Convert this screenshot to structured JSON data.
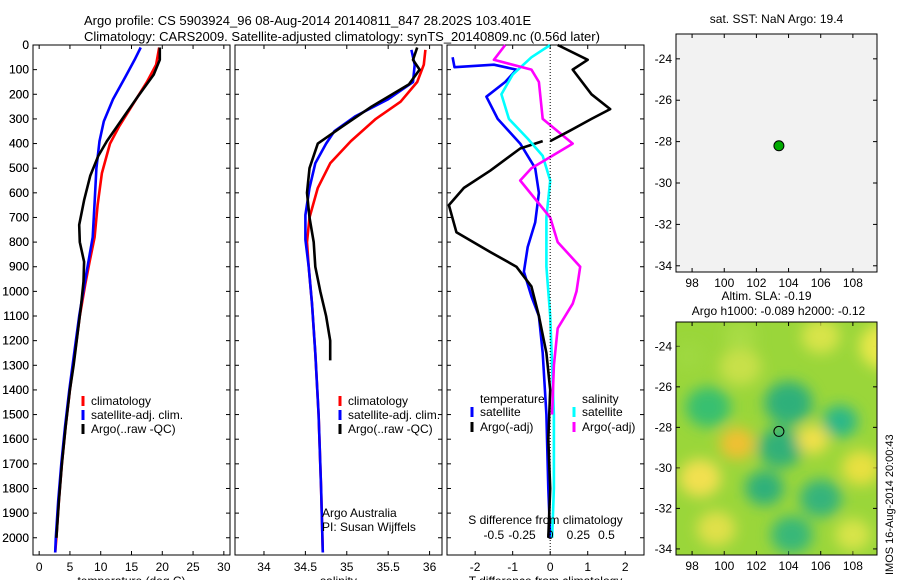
{
  "header": {
    "line1": "Argo profile: CS 5903924_96 08-Aug-2014 20140811_847 28.202S 103.401E",
    "line2": "Climatology: CARS2009. Satellite-adjusted climatology: synTS_20140809.nc (0.56d later)"
  },
  "watermark": "IMOS 16-Aug-2014 20:00:43",
  "colors": {
    "climatology": "#ff0000",
    "satellite": "#0000ff",
    "argo": "#000000",
    "sat_sal": "#00ffff",
    "argo_sal": "#ff00ff",
    "marker": "#00aa00"
  },
  "chart_data": [
    {
      "id": "temp",
      "type": "line",
      "xlabel": "temperature (deg C)",
      "ylabel": "",
      "xlim": [
        -1,
        31
      ],
      "ylim": [
        2070,
        0
      ],
      "xticks": [
        0,
        5,
        10,
        15,
        20,
        25,
        30
      ],
      "xtick_labels": [
        "0",
        "5",
        "10",
        "15",
        "20",
        "25",
        "30"
      ],
      "yticks": [
        0,
        100,
        200,
        300,
        400,
        500,
        600,
        700,
        800,
        900,
        1000,
        1100,
        1200,
        1300,
        1400,
        1500,
        1600,
        1700,
        1800,
        1900,
        2000
      ],
      "ytick_labels": [
        "0",
        "100",
        "200",
        "300",
        "400",
        "500",
        "600",
        "700",
        "800",
        "900",
        "1000",
        "1100",
        "1200",
        "1300",
        "1400",
        "1500",
        "1600",
        "1700",
        "1800",
        "1900",
        "2000"
      ],
      "legend": [
        "climatology",
        "satellite-adj. clim.",
        "Argo(..raw -QC)"
      ],
      "series": [
        {
          "name": "climatology",
          "color": "#ff0000",
          "points": [
            [
              19.5,
              10
            ],
            [
              19,
              80
            ],
            [
              17.5,
              150
            ],
            [
              15,
              250
            ],
            [
              13,
              330
            ],
            [
              11.5,
              400
            ],
            [
              10.2,
              520
            ],
            [
              9.5,
              650
            ],
            [
              9,
              780
            ],
            [
              8.2,
              880
            ],
            [
              7.5,
              970
            ],
            [
              6.6,
              1100
            ],
            [
              5.8,
              1250
            ],
            [
              5,
              1400
            ],
            [
              4.3,
              1550
            ],
            [
              3.7,
              1700
            ],
            [
              3.2,
              1850
            ],
            [
              2.8,
              2000
            ],
            [
              2.6,
              2060
            ]
          ]
        },
        {
          "name": "satellite-adj. clim.",
          "color": "#0000ff",
          "points": [
            [
              16.5,
              10
            ],
            [
              15.5,
              60
            ],
            [
              14,
              130
            ],
            [
              12,
              220
            ],
            [
              10.5,
              310
            ],
            [
              9.8,
              390
            ],
            [
              9.3,
              500
            ],
            [
              9,
              640
            ],
            [
              8.7,
              780
            ],
            [
              8,
              880
            ],
            [
              7.3,
              980
            ],
            [
              6.5,
              1100
            ],
            [
              5.7,
              1250
            ],
            [
              4.9,
              1400
            ],
            [
              4.2,
              1550
            ],
            [
              3.6,
              1700
            ],
            [
              3.1,
              1850
            ],
            [
              2.7,
              2000
            ],
            [
              2.6,
              2060
            ]
          ]
        },
        {
          "name": "Argo(..raw -QC)",
          "color": "#000000",
          "points": [
            [
              19.6,
              10
            ],
            [
              19.6,
              60
            ],
            [
              18.6,
              120
            ],
            [
              16,
              210
            ],
            [
              13.5,
              300
            ],
            [
              11,
              390
            ],
            [
              9.6,
              450
            ],
            [
              8.3,
              530
            ],
            [
              7.3,
              630
            ],
            [
              6.5,
              730
            ],
            [
              6.6,
              800
            ],
            [
              7.3,
              880
            ],
            [
              7.2,
              960
            ],
            [
              6.8,
              1060
            ],
            [
              6.2,
              1180
            ],
            [
              5.6,
              1300
            ],
            [
              5,
              1400
            ],
            [
              4.3,
              1550
            ],
            [
              3.7,
              1700
            ],
            [
              3.2,
              1850
            ],
            [
              2.8,
              2000
            ]
          ]
        }
      ],
      "annotations": []
    },
    {
      "id": "sal",
      "type": "line",
      "xlabel": "salinity",
      "ylabel": "",
      "xlim": [
        33.65,
        36.15
      ],
      "ylim": [
        2070,
        0
      ],
      "xticks": [
        34,
        34.5,
        35,
        35.5,
        36
      ],
      "xtick_labels": [
        "34",
        "34.5",
        "35",
        "35.5",
        "36"
      ],
      "yticks": [],
      "ytick_labels": [],
      "legend": [
        "climatology",
        "satellite-adj. clim.",
        "Argo(..raw -QC)"
      ],
      "annotations": [
        "Argo Australia",
        "PI: Susan Wijffels"
      ],
      "series": [
        {
          "name": "climatology",
          "color": "#ff0000",
          "points": [
            [
              35.95,
              20
            ],
            [
              35.93,
              80
            ],
            [
              35.85,
              150
            ],
            [
              35.65,
              230
            ],
            [
              35.35,
              300
            ],
            [
              35.05,
              390
            ],
            [
              34.8,
              480
            ],
            [
              34.65,
              580
            ],
            [
              34.55,
              700
            ],
            [
              34.52,
              800
            ],
            [
              34.54,
              900
            ],
            [
              34.58,
              1050
            ],
            [
              34.62,
              1250
            ],
            [
              34.66,
              1500
            ],
            [
              34.69,
              1800
            ],
            [
              34.71,
              2060
            ]
          ]
        },
        {
          "name": "satellite-adj. clim.",
          "color": "#0000ff",
          "points": [
            [
              35.78,
              20
            ],
            [
              35.82,
              80
            ],
            [
              35.8,
              150
            ],
            [
              35.5,
              220
            ],
            [
              35.1,
              290
            ],
            [
              34.85,
              350
            ],
            [
              34.75,
              400
            ],
            [
              34.62,
              480
            ],
            [
              34.55,
              580
            ],
            [
              34.5,
              690
            ],
            [
              34.5,
              790
            ],
            [
              34.54,
              900
            ],
            [
              34.58,
              1050
            ],
            [
              34.62,
              1250
            ],
            [
              34.66,
              1500
            ],
            [
              34.69,
              1800
            ],
            [
              34.71,
              2060
            ]
          ]
        },
        {
          "name": "Argo(..raw -QC)",
          "color": "#000000",
          "points": [
            [
              35.85,
              10
            ],
            [
              35.8,
              60
            ],
            [
              35.88,
              100
            ],
            [
              35.75,
              160
            ],
            [
              35.3,
              250
            ],
            [
              34.95,
              330
            ],
            [
              34.65,
              400
            ],
            [
              34.55,
              500
            ],
            [
              34.52,
              600
            ],
            [
              34.55,
              700
            ],
            [
              34.6,
              800
            ],
            [
              34.62,
              900
            ],
            [
              34.68,
              1000
            ],
            [
              34.75,
              1100
            ],
            [
              34.8,
              1200
            ],
            [
              34.8,
              1280
            ]
          ]
        }
      ]
    },
    {
      "id": "diff",
      "type": "line",
      "xlabel": "T difference from climatology",
      "xlabel_top": "S difference from climatology",
      "xlim": [
        -2.75,
        2.5
      ],
      "ylim": [
        2070,
        0
      ],
      "xticks": [
        -2,
        -1,
        0,
        1,
        2
      ],
      "xtick_labels": [
        "-2",
        "-1",
        "0",
        "1",
        "2"
      ],
      "top_ticks_at": [
        -1.5,
        -0.75,
        0,
        0.75,
        1.5
      ],
      "top_tick_labels": [
        "-0.5",
        "-0.25",
        "0",
        "0.25",
        "0.5"
      ],
      "yticks": [],
      "ytick_labels": [],
      "legend_titles": [
        "temperature",
        "salinity"
      ],
      "legend": [
        "satellite",
        "Argo(-adj)",
        "satellite",
        "Argo(-adj)"
      ],
      "series": [
        {
          "name": "temperature satellite",
          "color": "#0000ff",
          "points": [
            [
              -2.6,
              50
            ],
            [
              -2.55,
              90
            ],
            [
              -1.5,
              80
            ],
            [
              -0.9,
              100
            ],
            [
              -1.2,
              150
            ],
            [
              -1.7,
              210
            ],
            [
              -1.4,
              300
            ],
            [
              -0.8,
              400
            ],
            [
              -0.4,
              500
            ],
            [
              -0.3,
              600
            ],
            [
              -0.4,
              720
            ],
            [
              -0.6,
              820
            ],
            [
              -0.7,
              920
            ],
            [
              -0.5,
              1020
            ],
            [
              -0.3,
              1100
            ],
            [
              -0.2,
              1250
            ],
            [
              -0.1,
              1500
            ],
            [
              -0.05,
              1800
            ],
            [
              0,
              2000
            ]
          ]
        },
        {
          "name": "temperature Argo(-adj)",
          "color": "#000000",
          "points": [
            [
              -0.2,
              390
            ],
            [
              -0.8,
              420
            ],
            [
              -1.6,
              510
            ],
            [
              -2.3,
              580
            ],
            [
              -2.7,
              650
            ],
            [
              -2.5,
              760
            ],
            [
              -1.6,
              840
            ],
            [
              -0.9,
              900
            ],
            [
              -0.5,
              980
            ],
            [
              -0.3,
              1100
            ],
            [
              -0.1,
              1250
            ],
            [
              0,
              1400
            ],
            [
              -0.05,
              1600
            ],
            [
              0,
              1800
            ],
            [
              -0.05,
              2000
            ]
          ]
        },
        {
          "name": "salinity satellite",
          "color": "#00ffff",
          "points": [
            [
              0,
              0
            ],
            [
              -0.5,
              50
            ],
            [
              -1,
              120
            ],
            [
              -1.3,
              200
            ],
            [
              -1.1,
              300
            ],
            [
              -0.6,
              380
            ],
            [
              -0.2,
              450
            ],
            [
              0,
              550
            ],
            [
              -0.1,
              700
            ],
            [
              -0.1,
              900
            ],
            [
              0,
              1100
            ],
            [
              0.05,
              1300
            ],
            [
              0.1,
              1500
            ],
            [
              0.1,
              1800
            ],
            [
              0.05,
              2000
            ]
          ]
        },
        {
          "name": "salinity Argo(-adj)",
          "color": "#ff00ff",
          "points": [
            [
              -1.2,
              0
            ],
            [
              -1.5,
              60
            ],
            [
              -0.5,
              100
            ],
            [
              -0.3,
              150
            ],
            [
              -0.2,
              300
            ],
            [
              0.6,
              400
            ],
            [
              -0.5,
              500
            ],
            [
              -0.8,
              550
            ],
            [
              0,
              700
            ],
            [
              0.2,
              800
            ],
            [
              0.8,
              900
            ],
            [
              0.7,
              1000
            ],
            [
              0.6,
              1050
            ],
            [
              0.2,
              1150
            ],
            [
              0.1,
              1300
            ],
            [
              0.05,
              1500
            ]
          ]
        },
        {
          "name": "Argo T upper",
          "color": "#000000",
          "points": [
            [
              0.2,
              0
            ],
            [
              1,
              60
            ],
            [
              0.6,
              100
            ],
            [
              1.1,
              200
            ],
            [
              1.6,
              260
            ],
            [
              1.1,
              300
            ],
            [
              0.5,
              350
            ],
            [
              0,
              390
            ]
          ]
        }
      ]
    }
  ],
  "map_top": {
    "title": "sat. SST: NaN Argo: 19.4",
    "xlim": [
      97,
      109.5
    ],
    "ylim": [
      -34.3,
      -22.8
    ],
    "xticks": [
      98,
      100,
      102,
      104,
      106,
      108
    ],
    "xtick_labels": [
      "98",
      "100",
      "102",
      "104",
      "106",
      "108"
    ],
    "yticks": [
      -24,
      -26,
      -28,
      -30,
      -32,
      -34
    ],
    "ytick_labels": [
      "-24",
      "-26",
      "-28",
      "-30",
      "-32",
      "-34"
    ],
    "marker": [
      103.4,
      -28.2
    ]
  },
  "map_bottom": {
    "title1": "Altim. SLA: -0.19",
    "title2": "Argo h1000: -0.089 h2000: -0.12",
    "xlim": [
      97,
      109.5
    ],
    "ylim": [
      -34.3,
      -22.8
    ],
    "xticks": [
      98,
      100,
      102,
      104,
      106,
      108
    ],
    "xtick_labels": [
      "98",
      "100",
      "102",
      "104",
      "106",
      "108"
    ],
    "yticks": [
      -24,
      -26,
      -28,
      -30,
      -32,
      -34
    ],
    "ytick_labels": [
      "-24",
      "-26",
      "-28",
      "-30",
      "-32",
      "-34"
    ],
    "marker": [
      103.4,
      -28.2
    ]
  }
}
